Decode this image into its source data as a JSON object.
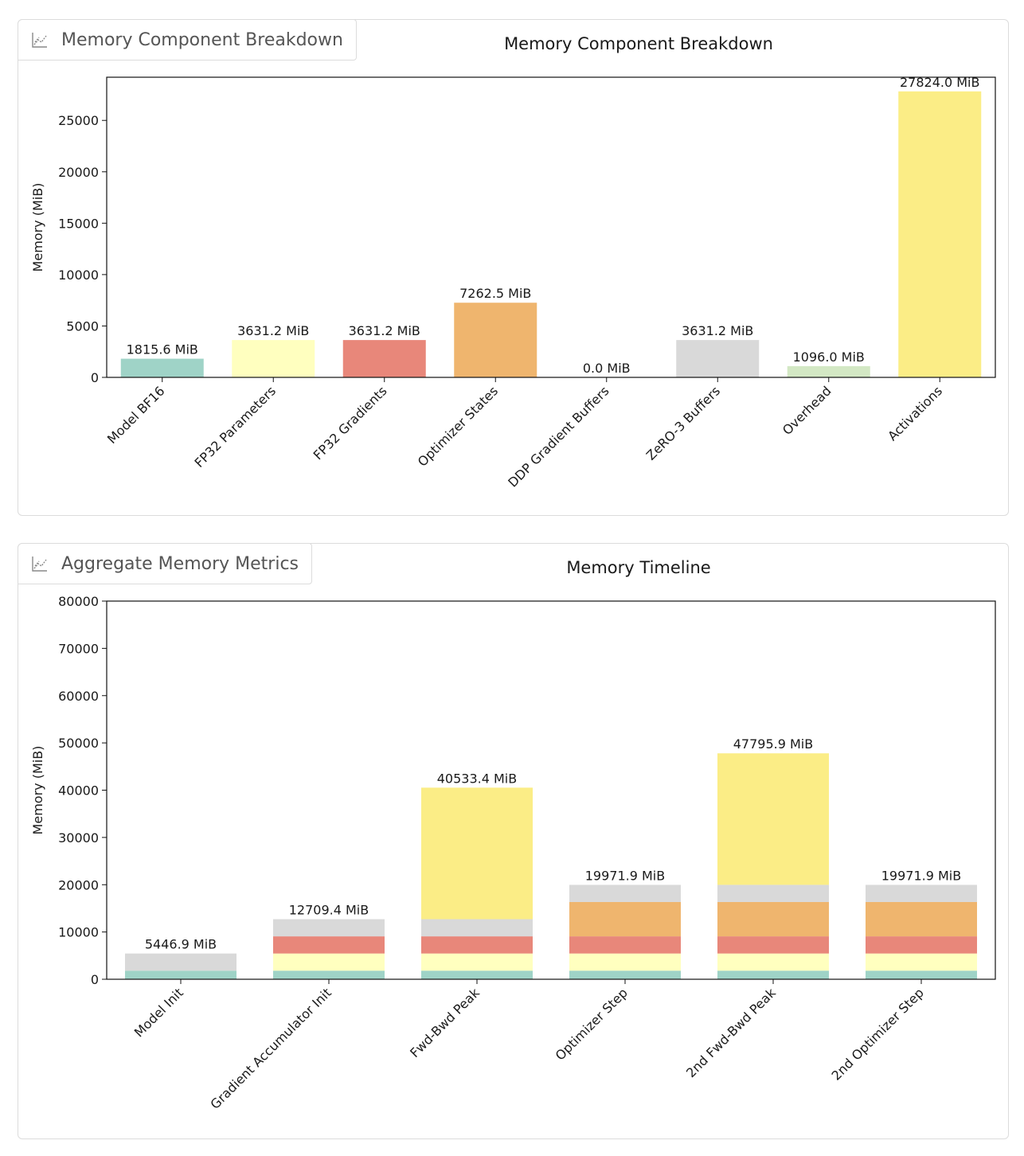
{
  "panels": [
    {
      "tab_label": "Memory Component Breakdown",
      "tab_icon": "chart-icon"
    },
    {
      "tab_label": "Aggregate Memory Metrics",
      "tab_icon": "chart-icon"
    }
  ],
  "chart_data": [
    {
      "type": "bar",
      "title": "Memory Component Breakdown",
      "xlabel": "",
      "ylabel": "Memory (MiB)",
      "ylim": [
        0,
        29200
      ],
      "yticks": [
        0,
        5000,
        10000,
        15000,
        20000,
        25000
      ],
      "grid": false,
      "categories": [
        "Model BF16",
        "FP32 Parameters",
        "FP32 Gradients",
        "Optimizer States",
        "DDP Gradient Buffers",
        "ZeRO-3 Buffers",
        "Overhead",
        "Activations"
      ],
      "values": [
        1815.6,
        3631.2,
        3631.2,
        7262.5,
        0.0,
        3631.2,
        1096.0,
        27824.0
      ],
      "data_labels": [
        "1815.6 MiB",
        "3631.2 MiB",
        "3631.2 MiB",
        "7262.5 MiB",
        "0.0 MiB",
        "3631.2 MiB",
        "1096.0 MiB",
        "27824.0 MiB"
      ],
      "colors": [
        "#9fd3c7",
        "#ffffbf",
        "#e8877a",
        "#efb56e",
        "#c6c6e6",
        "#d9d9d9",
        "#d3e8c4",
        "#fbed86"
      ]
    },
    {
      "type": "bar",
      "stacked": true,
      "title": "Memory Timeline",
      "xlabel": "",
      "ylabel": "Memory (MiB)",
      "ylim": [
        0,
        80000
      ],
      "yticks": [
        0,
        10000,
        20000,
        30000,
        40000,
        50000,
        60000,
        70000,
        80000
      ],
      "grid": false,
      "categories": [
        "Model Init",
        "Gradient Accumulator Init",
        "Fwd-Bwd Peak",
        "Optimizer Step",
        "2nd Fwd-Bwd Peak",
        "2nd Optimizer Step"
      ],
      "totals_labels": [
        "5446.9 MiB",
        "12709.4 MiB",
        "40533.4 MiB",
        "19971.9 MiB",
        "47795.9 MiB",
        "19971.9 MiB"
      ],
      "series": [
        {
          "values": [
            1815.6,
            1815.6,
            1815.6,
            1815.6,
            1815.6,
            1815.6
          ],
          "color": "#9fd3c7"
        },
        {
          "values": [
            0,
            3631.2,
            3631.2,
            3631.2,
            3631.2,
            3631.2
          ],
          "color": "#ffffbf"
        },
        {
          "values": [
            0,
            3631.2,
            3631.2,
            3631.2,
            3631.2,
            3631.2
          ],
          "color": "#e8877a"
        },
        {
          "values": [
            0,
            0,
            0,
            7262.5,
            7262.5,
            7262.5
          ],
          "color": "#efb56e"
        },
        {
          "values": [
            3631.2,
            3631.2,
            3631.2,
            3631.2,
            3631.2,
            3631.2
          ],
          "color": "#d9d9d9"
        },
        {
          "values": [
            0,
            0,
            27824.0,
            0,
            27824.0,
            0
          ],
          "color": "#fbed86"
        }
      ]
    }
  ]
}
